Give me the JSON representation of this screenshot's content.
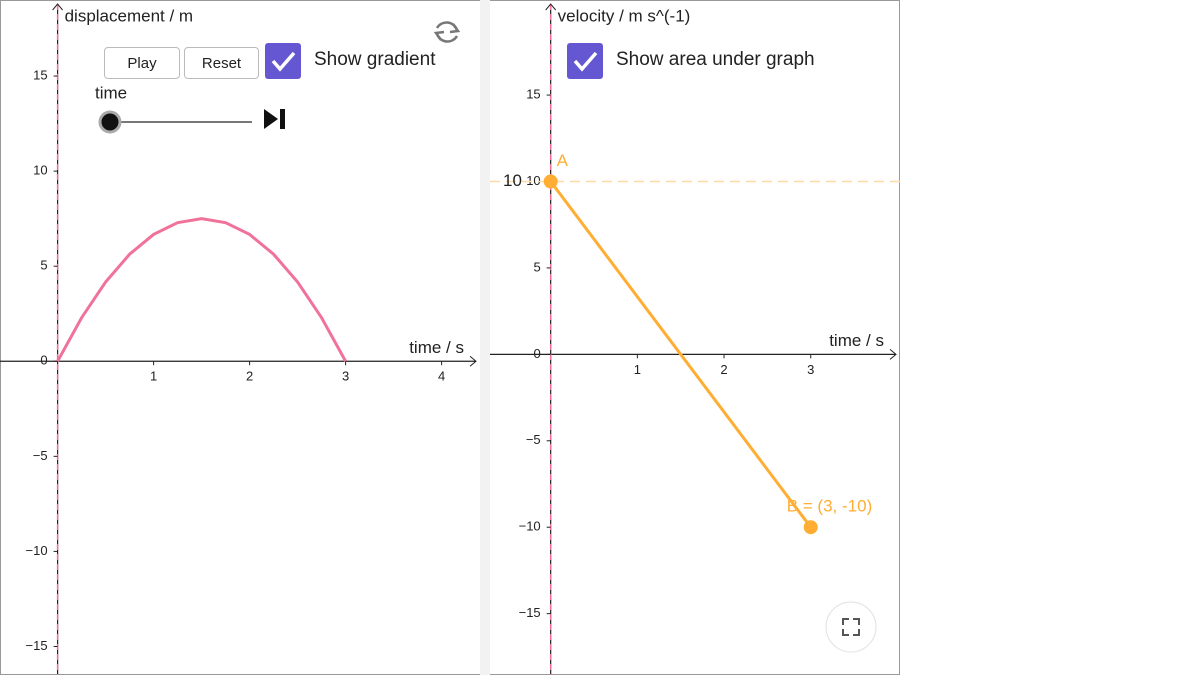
{
  "controls": {
    "play": "Play",
    "reset": "Reset",
    "show_gradient": "Show gradient",
    "slider_label": "time",
    "show_area": "Show area under graph"
  },
  "chart_data": [
    {
      "type": "line",
      "y_label": "displacement / m",
      "x_label": "time / s",
      "x": [
        0,
        0.25,
        0.5,
        0.75,
        1,
        1.25,
        1.5,
        1.75,
        2,
        2.25,
        2.5,
        2.75,
        3
      ],
      "series": [
        {
          "color": "#f0729a",
          "values": [
            0,
            2.29,
            4.17,
            5.63,
            6.67,
            7.29,
            7.5,
            7.29,
            6.67,
            5.63,
            4.17,
            2.29,
            0
          ]
        }
      ],
      "xlim": [
        -0.6,
        4.4
      ],
      "ylim": [
        -16.5,
        19
      ],
      "xticks": [
        1,
        2,
        3,
        4
      ],
      "yticks": [
        {
          "value": -15,
          "label": "−15"
        },
        {
          "value": -10,
          "label": "−10"
        },
        {
          "value": -5,
          "label": "−5"
        },
        0,
        5,
        10,
        15
      ]
    },
    {
      "type": "line",
      "y_label": "velocity / m s^(-1)",
      "x_label": "time / s",
      "x": [
        0,
        3
      ],
      "series": [
        {
          "color": "#ffad33",
          "values": [
            10,
            -10
          ]
        }
      ],
      "points": [
        {
          "label": "A",
          "x": 0,
          "y": 10
        },
        {
          "label": "B = (3, -10)",
          "x": 3,
          "y": -10
        }
      ],
      "hline": {
        "value": 10,
        "label": "10"
      },
      "xlim": [
        -0.7,
        4.03
      ],
      "ylim": [
        -18.55,
        20.5
      ],
      "xticks": [
        1,
        2,
        3
      ],
      "yticks": [
        {
          "value": -15,
          "label": "−15"
        },
        {
          "value": -10,
          "label": "−10"
        },
        {
          "value": -5,
          "label": "−5"
        },
        0,
        5,
        10,
        15
      ]
    }
  ]
}
